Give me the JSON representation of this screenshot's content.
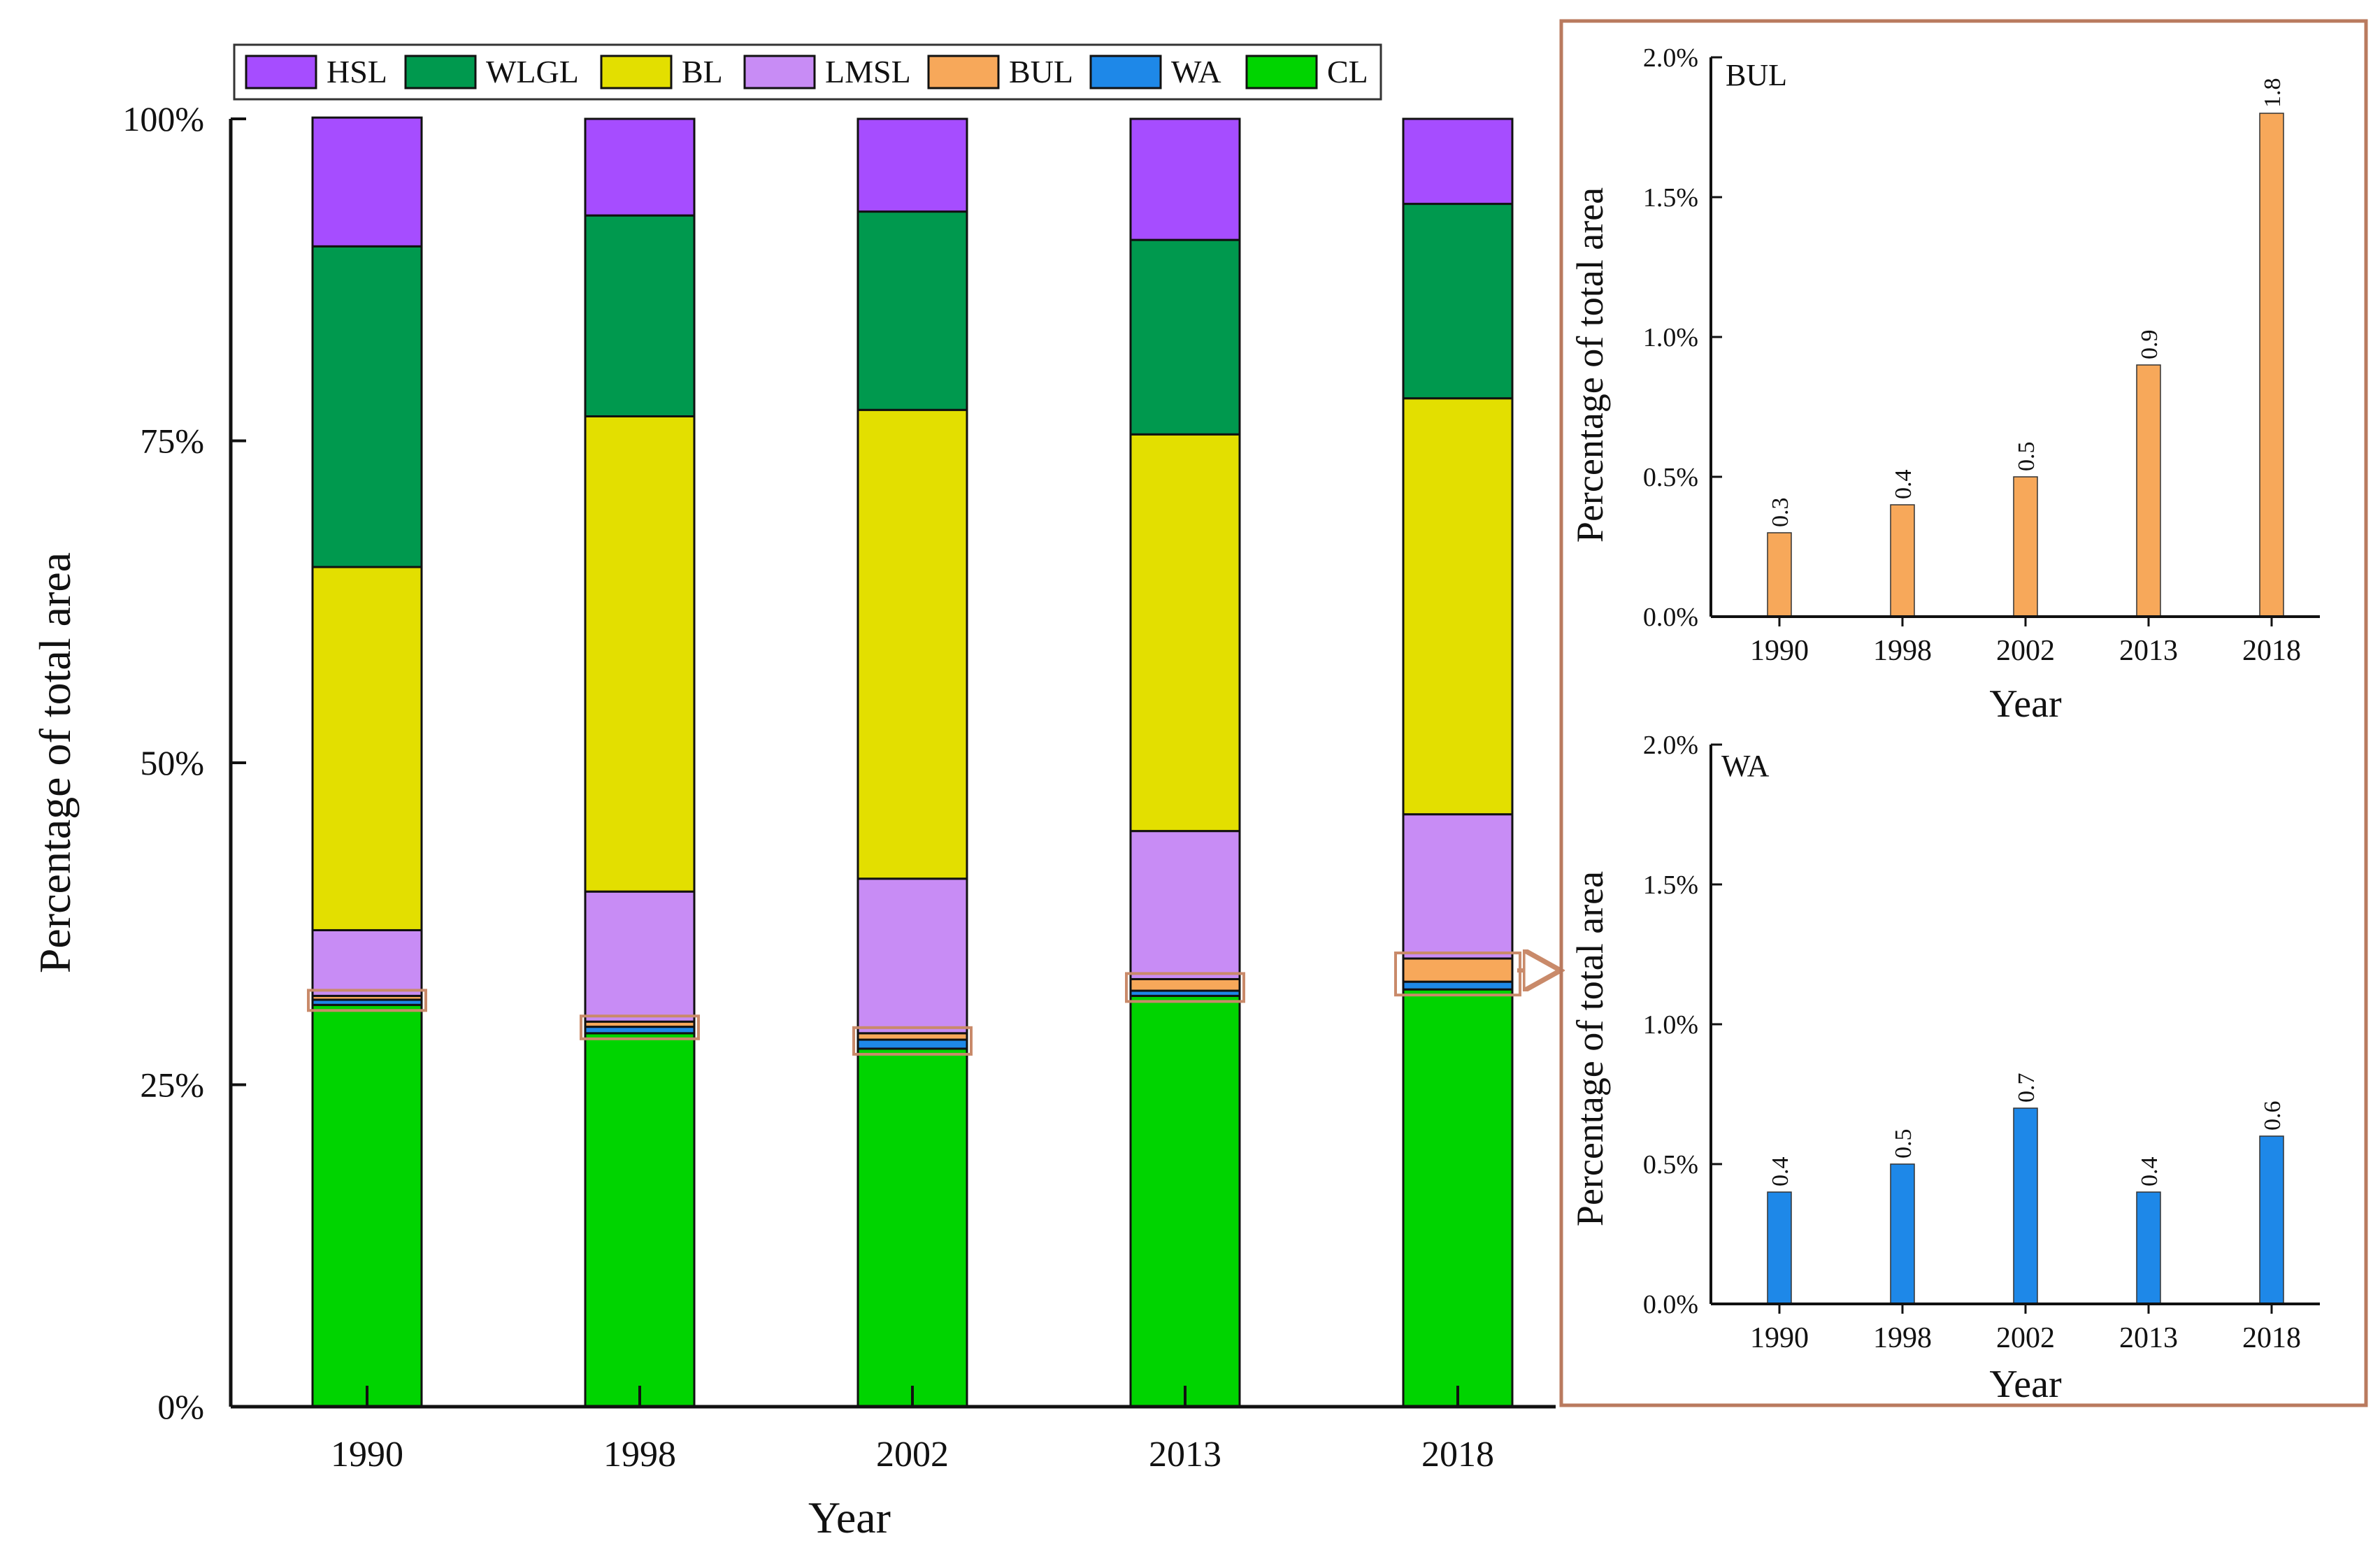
{
  "chart_data": [
    {
      "type": "bar",
      "stacked": true,
      "title": "",
      "xlabel": "Year",
      "ylabel": "Percentage of total area",
      "categories": [
        "1990",
        "1998",
        "2002",
        "2013",
        "2018"
      ],
      "ylim": [
        0,
        100
      ],
      "yticks": [
        "0%",
        "25%",
        "50%",
        "75%",
        "100%"
      ],
      "legend_position": "top",
      "legend": [
        "HSL",
        "WLGL",
        "BL",
        "LMSL",
        "BUL",
        "WA",
        "CL"
      ],
      "stack_order_bottom_to_top": [
        "CL",
        "WA",
        "BUL",
        "LMSL",
        "BL",
        "WLGL",
        "HSL"
      ],
      "series": [
        {
          "name": "CL",
          "color": "#00d400",
          "values": [
            31.2,
            29.0,
            27.8,
            31.9,
            32.4
          ]
        },
        {
          "name": "WA",
          "color": "#1e88e8",
          "values": [
            0.4,
            0.5,
            0.7,
            0.4,
            0.6
          ]
        },
        {
          "name": "BUL",
          "color": "#f7a85a",
          "values": [
            0.3,
            0.4,
            0.5,
            0.9,
            1.8
          ]
        },
        {
          "name": "LMSL",
          "color": "#c88cf5",
          "values": [
            5.1,
            10.1,
            12.0,
            11.5,
            11.2
          ]
        },
        {
          "name": "BL",
          "color": "#e3df00",
          "values": [
            28.2,
            36.9,
            36.4,
            30.8,
            32.3
          ]
        },
        {
          "name": "WLGL",
          "color": "#00994e",
          "values": [
            24.9,
            15.6,
            15.4,
            15.1,
            15.1
          ]
        },
        {
          "name": "HSL",
          "color": "#a64dff",
          "values": [
            10.0,
            7.5,
            7.2,
            9.4,
            6.6
          ]
        }
      ]
    },
    {
      "type": "bar",
      "title": "BUL",
      "xlabel": "Year",
      "ylabel": "Percentage of total area",
      "categories": [
        "1990",
        "1998",
        "2002",
        "2013",
        "2018"
      ],
      "values": [
        0.3,
        0.4,
        0.5,
        0.9,
        1.8
      ],
      "value_labels": [
        "0.3",
        "0.4",
        "0.5",
        "0.9",
        "1.8"
      ],
      "ylim": [
        0,
        2.0
      ],
      "yticks": [
        "0.0%",
        "0.5%",
        "1.0%",
        "1.5%",
        "2.0%"
      ],
      "color": "#f7a85a"
    },
    {
      "type": "bar",
      "title": "WA",
      "xlabel": "Year",
      "ylabel": "Percentage of total area",
      "categories": [
        "1990",
        "1998",
        "2002",
        "2013",
        "2018"
      ],
      "values": [
        0.4,
        0.5,
        0.7,
        0.4,
        0.6
      ],
      "value_labels": [
        "0.4",
        "0.5",
        "0.7",
        "0.4",
        "0.6"
      ],
      "ylim": [
        0,
        2.0
      ],
      "yticks": [
        "0.0%",
        "0.5%",
        "1.0%",
        "1.5%",
        "2.0%"
      ],
      "color": "#1e88e8"
    }
  ],
  "colors": {
    "axis": "#111111",
    "panel_border": "#b97a5e",
    "highlight_box": "#c98a6a"
  }
}
